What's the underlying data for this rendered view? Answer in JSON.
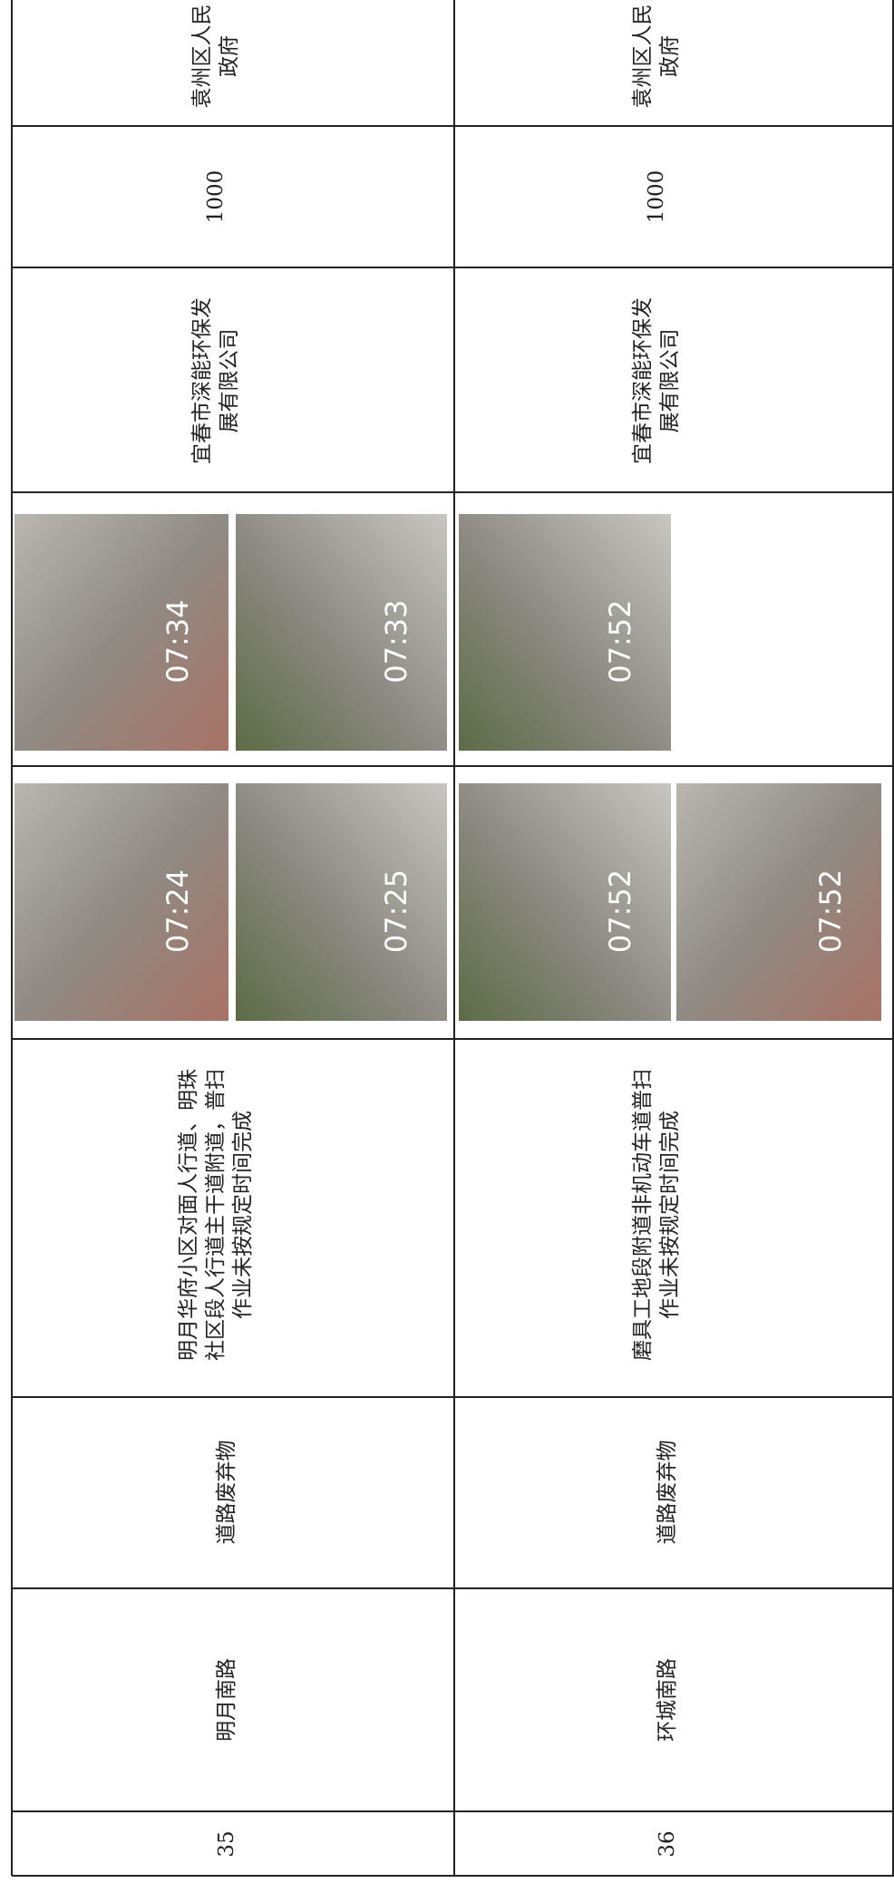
{
  "table": {
    "rows": [
      {
        "number": "35",
        "road": "明月南路",
        "issue_type": "道路废弃物",
        "description": [
          "明月华府小区对面人行道、明珠",
          "社区段人行道主干道附道，普扫",
          "作业未按规定时间完成"
        ],
        "photos_before": [
          "07:24",
          "07:25"
        ],
        "photos_after": [
          "07:34",
          "07:33"
        ],
        "company": [
          "宜春市深能环保发",
          "展有限公司"
        ],
        "amount": "1000",
        "government": [
          "袁州区人民",
          "政府"
        ]
      },
      {
        "number": "36",
        "road": "环城南路",
        "issue_type": "道路废弃物",
        "description": [
          "磨具工地段附道非机动车道普扫",
          "作业未按规定时间完成"
        ],
        "photos_before": [
          "07:52",
          "07:52"
        ],
        "photos_after": [
          "07:52"
        ],
        "company": [
          "宜春市深能环保发",
          "展有限公司"
        ],
        "amount": "1000",
        "government": [
          "袁州区人民",
          "政府"
        ]
      }
    ]
  }
}
